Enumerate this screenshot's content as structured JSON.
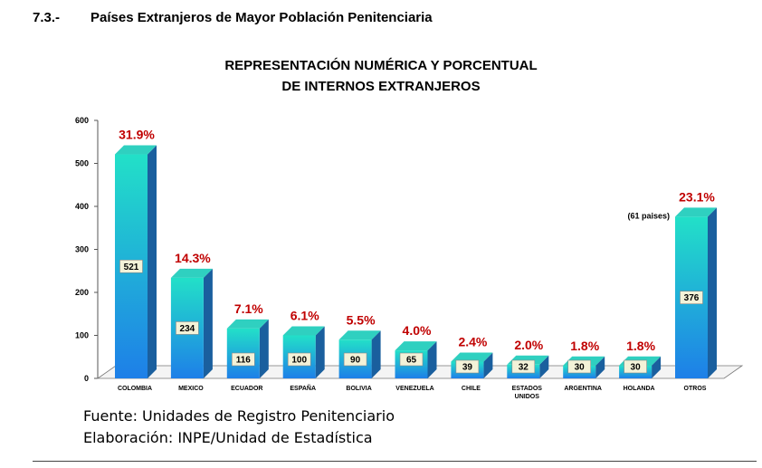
{
  "section": {
    "number": "7.3.-",
    "title": "Países Extranjeros de Mayor Población Penitenciaria"
  },
  "chart_data": {
    "type": "bar",
    "title_line1": "REPRESENTACIÓN NUMÉRICA Y PORCENTUAL",
    "title_line2": "DE INTERNOS EXTRANJEROS",
    "categories": [
      "COLOMBIA",
      "MEXICO",
      "ECUADOR",
      "ESPAÑA",
      "BOLIVIA",
      "VENEZUELA",
      "CHILE",
      "ESTADOS UNIDOS",
      "ARGENTINA",
      "HOLANDA",
      "OTROS"
    ],
    "category_lines": [
      [
        "COLOMBIA"
      ],
      [
        "MEXICO"
      ],
      [
        "ECUADOR"
      ],
      [
        "ESPAÑA"
      ],
      [
        "BOLIVIA"
      ],
      [
        "VENEZUELA"
      ],
      [
        "CHILE"
      ],
      [
        "ESTADOS",
        "UNIDOS"
      ],
      [
        "ARGENTINA"
      ],
      [
        "HOLANDA"
      ],
      [
        "OTROS"
      ]
    ],
    "values": [
      521,
      234,
      116,
      100,
      90,
      65,
      39,
      32,
      30,
      30,
      376
    ],
    "percentages": [
      "31.9%",
      "14.3%",
      "7.1%",
      "6.1%",
      "5.5%",
      "4.0%",
      "2.4%",
      "2.0%",
      "1.8%",
      "1.8%",
      "23.1%"
    ],
    "annotation": {
      "category": "OTROS",
      "text": "(61 paises)"
    },
    "ylim": [
      0,
      600
    ],
    "yticks": [
      0,
      100,
      200,
      300,
      400,
      500,
      600
    ],
    "grid": false,
    "legend": "none",
    "colors": {
      "bar_top": "#22e0c8",
      "bar_bottom": "#1e7fe8",
      "bar_side": "#1a5f9e",
      "bar_cap": "#2fd0c0",
      "percent_label": "#c00000",
      "value_box": "#f3f2d8"
    }
  },
  "footer": {
    "source": "Fuente: Unidades de Registro Penitenciario",
    "elaboration": "Elaboración: INPE/Unidad de Estadística"
  }
}
